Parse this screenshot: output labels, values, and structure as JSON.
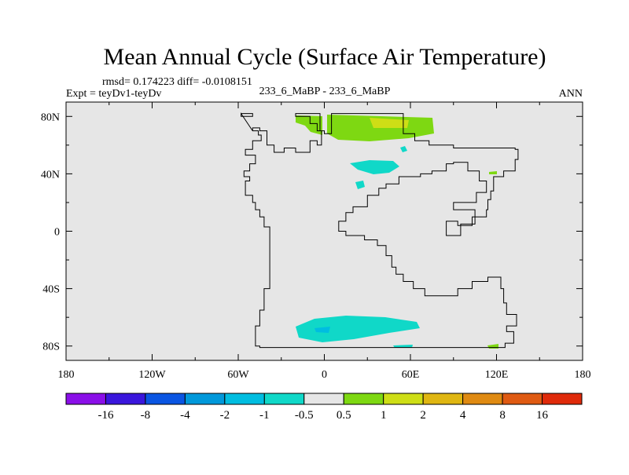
{
  "chart_data": {
    "type": "heatmap",
    "title": "Mean Annual Cycle (Surface Air Temperature)",
    "stats_text": "rmsd= 0.174223 diff= -0.0108151",
    "left_label": "Expt = teyDv1-teyDv",
    "center_label": "233_6_MaBP - 233_6_MaBP",
    "right_label": "ANN",
    "xlim": [
      -180,
      180
    ],
    "ylim": [
      -90,
      90
    ],
    "x_ticks": [
      {
        "value": -180,
        "label": "180"
      },
      {
        "value": -120,
        "label": "120W"
      },
      {
        "value": -60,
        "label": "60W"
      },
      {
        "value": 0,
        "label": "0"
      },
      {
        "value": 60,
        "label": "60E"
      },
      {
        "value": 120,
        "label": "120E"
      },
      {
        "value": 180,
        "label": "180"
      }
    ],
    "y_ticks": [
      {
        "value": 80,
        "label": "80N"
      },
      {
        "value": 40,
        "label": "40N"
      },
      {
        "value": 0,
        "label": "0"
      },
      {
        "value": -40,
        "label": "40S"
      },
      {
        "value": -80,
        "label": "80S"
      }
    ],
    "colorbar": {
      "colors": [
        "#8a0fe8",
        "#3a16dc",
        "#0a55e2",
        "#0098da",
        "#00bde0",
        "#10d8c8",
        "#e6e6e6",
        "#7ed812",
        "#cede16",
        "#dfb612",
        "#df8a12",
        "#df5a12",
        "#df2a0a"
      ],
      "labels": [
        "-16",
        "-8",
        "-4",
        "-2",
        "-1",
        "-0.5",
        "0.5",
        "1",
        "2",
        "4",
        "8",
        "16"
      ]
    },
    "background_color": "#e6e6e6",
    "coastline": [
      [
        -58,
        82
      ],
      [
        -50,
        82
      ],
      [
        -50,
        80
      ],
      [
        -58,
        80
      ],
      [
        -58,
        82
      ],
      [
        -58,
        82
      ],
      [
        -50,
        70
      ],
      [
        -46,
        70
      ],
      [
        -46,
        67
      ],
      [
        -44,
        67
      ],
      [
        -44,
        63
      ],
      [
        -50,
        63
      ],
      [
        -50,
        57
      ],
      [
        -55,
        57
      ],
      [
        -55,
        53
      ],
      [
        -48,
        53
      ],
      [
        -48,
        47
      ],
      [
        -52,
        47
      ],
      [
        -52,
        42
      ],
      [
        -56,
        42
      ],
      [
        -56,
        38
      ],
      [
        -52,
        38
      ],
      [
        -52,
        35
      ],
      [
        -55,
        35
      ],
      [
        -55,
        25
      ],
      [
        -50,
        25
      ],
      [
        -50,
        20
      ],
      [
        -48,
        20
      ],
      [
        -48,
        15
      ],
      [
        -45,
        15
      ],
      [
        -45,
        10
      ],
      [
        -42,
        10
      ],
      [
        -42,
        3
      ],
      [
        -38,
        3
      ],
      [
        -38,
        -40
      ],
      [
        -42,
        -40
      ],
      [
        -42,
        -55
      ],
      [
        -45,
        -55
      ],
      [
        -45,
        -66
      ],
      [
        -48,
        -66
      ],
      [
        -48,
        -80
      ],
      [
        -45,
        -80
      ],
      [
        -45,
        -81
      ],
      [
        126,
        -81
      ],
      [
        126,
        -78
      ],
      [
        132,
        -78
      ],
      [
        132,
        -70
      ],
      [
        127,
        -70
      ],
      [
        127,
        -66
      ],
      [
        134,
        -66
      ],
      [
        134,
        -58
      ],
      [
        127,
        -58
      ],
      [
        127,
        -50
      ],
      [
        125,
        -50
      ],
      [
        125,
        -40
      ],
      [
        123,
        -40
      ],
      [
        123,
        -32
      ],
      [
        114,
        -32
      ],
      [
        114,
        -35
      ],
      [
        103,
        -35
      ],
      [
        103,
        -40
      ],
      [
        93,
        -40
      ],
      [
        93,
        -45
      ],
      [
        70,
        -45
      ],
      [
        70,
        -40
      ],
      [
        62,
        -40
      ],
      [
        62,
        -35
      ],
      [
        55,
        -35
      ],
      [
        55,
        -30
      ],
      [
        50,
        -30
      ],
      [
        50,
        -25
      ],
      [
        47,
        -25
      ],
      [
        47,
        -17
      ],
      [
        43,
        -17
      ],
      [
        43,
        -10
      ],
      [
        37,
        -10
      ],
      [
        37,
        -6
      ],
      [
        28,
        -6
      ],
      [
        28,
        -3
      ],
      [
        15,
        -3
      ],
      [
        15,
        0
      ],
      [
        10,
        0
      ],
      [
        10,
        7
      ],
      [
        15,
        7
      ],
      [
        15,
        13
      ],
      [
        20,
        13
      ],
      [
        20,
        17
      ],
      [
        30,
        17
      ],
      [
        30,
        25
      ],
      [
        38,
        25
      ],
      [
        38,
        30
      ],
      [
        43,
        30
      ],
      [
        43,
        33
      ],
      [
        52,
        33
      ],
      [
        52,
        38
      ],
      [
        67,
        38
      ],
      [
        67,
        40
      ],
      [
        75,
        40
      ],
      [
        75,
        42
      ],
      [
        85,
        42
      ],
      [
        85,
        47
      ],
      [
        90,
        47
      ],
      [
        90,
        48
      ],
      [
        100,
        48
      ],
      [
        100,
        42
      ],
      [
        108,
        42
      ],
      [
        108,
        35
      ],
      [
        113,
        35
      ],
      [
        113,
        27
      ],
      [
        106,
        27
      ],
      [
        106,
        20
      ],
      [
        90,
        20
      ],
      [
        90,
        15
      ],
      [
        105,
        15
      ],
      [
        105,
        10
      ],
      [
        103,
        10
      ],
      [
        103,
        4
      ],
      [
        93,
        4
      ],
      [
        93,
        7
      ],
      [
        85,
        7
      ],
      [
        85,
        -3
      ],
      [
        95,
        -3
      ],
      [
        95,
        5
      ],
      [
        105,
        5
      ],
      [
        105,
        10
      ],
      [
        113,
        10
      ],
      [
        113,
        15
      ],
      [
        114,
        15
      ],
      [
        114,
        22
      ],
      [
        116,
        22
      ],
      [
        116,
        28
      ],
      [
        118,
        28
      ],
      [
        118,
        38
      ],
      [
        125,
        38
      ],
      [
        125,
        42
      ],
      [
        133,
        42
      ],
      [
        133,
        50
      ],
      [
        135,
        50
      ],
      [
        135,
        57
      ],
      [
        133,
        57
      ],
      [
        133,
        58
      ],
      [
        90,
        58
      ],
      [
        90,
        60
      ],
      [
        73,
        60
      ],
      [
        73,
        63
      ],
      [
        63,
        63
      ],
      [
        63,
        68
      ],
      [
        55,
        68
      ],
      [
        55,
        82
      ],
      [
        30,
        82
      ],
      [
        15,
        82
      ],
      [
        5,
        82
      ],
      [
        5,
        68
      ],
      [
        0,
        68
      ],
      [
        0,
        70
      ],
      [
        -3,
        70
      ],
      [
        -3,
        75
      ],
      [
        -3,
        82
      ],
      [
        -20,
        82
      ],
      [
        -20,
        80
      ],
      [
        -10,
        80
      ],
      [
        -10,
        75
      ],
      [
        -5,
        75
      ],
      [
        -5,
        70
      ],
      [
        -2,
        70
      ],
      [
        -2,
        60
      ],
      [
        -5,
        60
      ],
      [
        -5,
        63
      ],
      [
        -10,
        63
      ],
      [
        -10,
        55
      ],
      [
        -20,
        55
      ],
      [
        -20,
        58
      ],
      [
        -28,
        58
      ],
      [
        -28,
        55
      ],
      [
        -35,
        55
      ],
      [
        -35,
        60
      ],
      [
        -40,
        60
      ],
      [
        -40,
        70
      ],
      [
        -45,
        70
      ],
      [
        -45,
        72
      ],
      [
        -50,
        72
      ],
      [
        -50,
        70
      ],
      [
        -50,
        70
      ]
    ]
  }
}
